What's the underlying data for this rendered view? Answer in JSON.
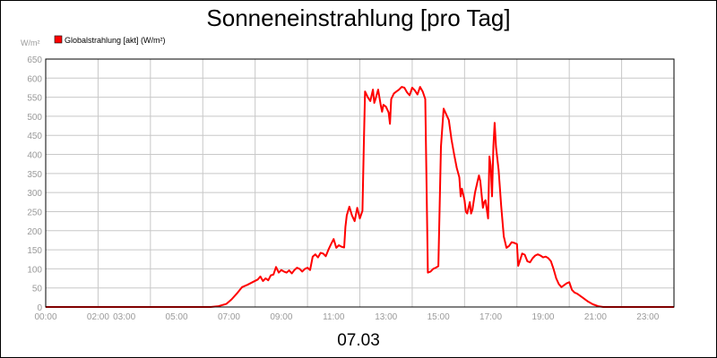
{
  "chart_data": {
    "type": "line",
    "title": "Sonneneinstrahlung [pro Tag]",
    "subtitle": "07.03",
    "yunit": "W/m²",
    "legend": {
      "position": "top-left"
    },
    "grid": true,
    "xlim": [
      0,
      24
    ],
    "ylim": [
      0,
      650
    ],
    "yticks": [
      0,
      50,
      100,
      150,
      200,
      250,
      300,
      350,
      400,
      450,
      500,
      550,
      600,
      650
    ],
    "xticks": [
      {
        "x": 0,
        "label": "00:00"
      },
      {
        "x": 2,
        "label": "02:00"
      },
      {
        "x": 3,
        "label": "03:00"
      },
      {
        "x": 5,
        "label": "05:00"
      },
      {
        "x": 7,
        "label": "07:00"
      },
      {
        "x": 9,
        "label": "09:00"
      },
      {
        "x": 11,
        "label": "11:00"
      },
      {
        "x": 13,
        "label": "13:00"
      },
      {
        "x": 15,
        "label": "15:00"
      },
      {
        "x": 17,
        "label": "17:00"
      },
      {
        "x": 19,
        "label": "19:00"
      },
      {
        "x": 21,
        "label": "21:00"
      },
      {
        "x": 23,
        "label": "23:00"
      }
    ],
    "xgrid": [
      0,
      2,
      4,
      6,
      8,
      10,
      12,
      14,
      16,
      18,
      20,
      22,
      24
    ],
    "series": [
      {
        "name": "Globalstrahlung [akt] (W/m²)",
        "color": "#ff0000",
        "points": [
          [
            0.0,
            0
          ],
          [
            6.3,
            0
          ],
          [
            6.6,
            2
          ],
          [
            6.9,
            8
          ],
          [
            7.1,
            20
          ],
          [
            7.3,
            35
          ],
          [
            7.5,
            52
          ],
          [
            7.7,
            58
          ],
          [
            7.9,
            65
          ],
          [
            8.1,
            72
          ],
          [
            8.2,
            80
          ],
          [
            8.3,
            68
          ],
          [
            8.4,
            75
          ],
          [
            8.5,
            70
          ],
          [
            8.6,
            83
          ],
          [
            8.7,
            85
          ],
          [
            8.8,
            105
          ],
          [
            8.9,
            90
          ],
          [
            9.0,
            97
          ],
          [
            9.1,
            93
          ],
          [
            9.2,
            90
          ],
          [
            9.3,
            96
          ],
          [
            9.4,
            88
          ],
          [
            9.5,
            97
          ],
          [
            9.6,
            103
          ],
          [
            9.7,
            100
          ],
          [
            9.8,
            93
          ],
          [
            9.9,
            100
          ],
          [
            10.0,
            103
          ],
          [
            10.1,
            97
          ],
          [
            10.2,
            132
          ],
          [
            10.3,
            138
          ],
          [
            10.4,
            130
          ],
          [
            10.5,
            142
          ],
          [
            10.6,
            140
          ],
          [
            10.7,
            133
          ],
          [
            10.8,
            150
          ],
          [
            10.9,
            165
          ],
          [
            11.0,
            178
          ],
          [
            11.1,
            155
          ],
          [
            11.2,
            162
          ],
          [
            11.3,
            158
          ],
          [
            11.4,
            156
          ],
          [
            11.45,
            210
          ],
          [
            11.5,
            240
          ],
          [
            11.6,
            263
          ],
          [
            11.7,
            240
          ],
          [
            11.8,
            225
          ],
          [
            11.9,
            260
          ],
          [
            12.0,
            232
          ],
          [
            12.1,
            252
          ],
          [
            12.15,
            420
          ],
          [
            12.2,
            565
          ],
          [
            12.3,
            550
          ],
          [
            12.4,
            540
          ],
          [
            12.5,
            570
          ],
          [
            12.55,
            535
          ],
          [
            12.6,
            545
          ],
          [
            12.7,
            570
          ],
          [
            12.8,
            528
          ],
          [
            12.85,
            512
          ],
          [
            12.9,
            530
          ],
          [
            13.0,
            525
          ],
          [
            13.1,
            510
          ],
          [
            13.15,
            480
          ],
          [
            13.2,
            545
          ],
          [
            13.3,
            560
          ],
          [
            13.4,
            565
          ],
          [
            13.5,
            570
          ],
          [
            13.6,
            577
          ],
          [
            13.7,
            575
          ],
          [
            13.8,
            563
          ],
          [
            13.9,
            555
          ],
          [
            14.0,
            575
          ],
          [
            14.1,
            568
          ],
          [
            14.2,
            557
          ],
          [
            14.3,
            577
          ],
          [
            14.4,
            565
          ],
          [
            14.5,
            545
          ],
          [
            14.6,
            90
          ],
          [
            14.7,
            93
          ],
          [
            14.8,
            100
          ],
          [
            14.9,
            103
          ],
          [
            15.0,
            107
          ],
          [
            15.1,
            420
          ],
          [
            15.2,
            520
          ],
          [
            15.3,
            505
          ],
          [
            15.4,
            490
          ],
          [
            15.5,
            440
          ],
          [
            15.6,
            400
          ],
          [
            15.7,
            365
          ],
          [
            15.8,
            340
          ],
          [
            15.85,
            290
          ],
          [
            15.9,
            310
          ],
          [
            16.0,
            280
          ],
          [
            16.05,
            250
          ],
          [
            16.1,
            245
          ],
          [
            16.2,
            275
          ],
          [
            16.25,
            245
          ],
          [
            16.3,
            255
          ],
          [
            16.4,
            300
          ],
          [
            16.5,
            330
          ],
          [
            16.55,
            345
          ],
          [
            16.6,
            330
          ],
          [
            16.7,
            260
          ],
          [
            16.75,
            275
          ],
          [
            16.8,
            280
          ],
          [
            16.9,
            232
          ],
          [
            16.95,
            395
          ],
          [
            17.0,
            370
          ],
          [
            17.05,
            290
          ],
          [
            17.1,
            420
          ],
          [
            17.15,
            483
          ],
          [
            17.2,
            420
          ],
          [
            17.3,
            360
          ],
          [
            17.4,
            265
          ],
          [
            17.5,
            185
          ],
          [
            17.6,
            155
          ],
          [
            17.7,
            160
          ],
          [
            17.8,
            170
          ],
          [
            17.9,
            168
          ],
          [
            18.0,
            165
          ],
          [
            18.05,
            108
          ],
          [
            18.1,
            118
          ],
          [
            18.2,
            140
          ],
          [
            18.3,
            137
          ],
          [
            18.4,
            120
          ],
          [
            18.5,
            117
          ],
          [
            18.6,
            128
          ],
          [
            18.7,
            135
          ],
          [
            18.8,
            138
          ],
          [
            18.9,
            135
          ],
          [
            19.0,
            130
          ],
          [
            19.1,
            132
          ],
          [
            19.2,
            128
          ],
          [
            19.3,
            120
          ],
          [
            19.4,
            100
          ],
          [
            19.5,
            75
          ],
          [
            19.6,
            60
          ],
          [
            19.7,
            52
          ],
          [
            19.8,
            57
          ],
          [
            19.9,
            62
          ],
          [
            20.0,
            65
          ],
          [
            20.1,
            45
          ],
          [
            20.2,
            38
          ],
          [
            20.3,
            35
          ],
          [
            20.5,
            25
          ],
          [
            20.7,
            15
          ],
          [
            20.9,
            7
          ],
          [
            21.1,
            2
          ],
          [
            21.3,
            0
          ],
          [
            24.0,
            0
          ]
        ]
      }
    ]
  }
}
